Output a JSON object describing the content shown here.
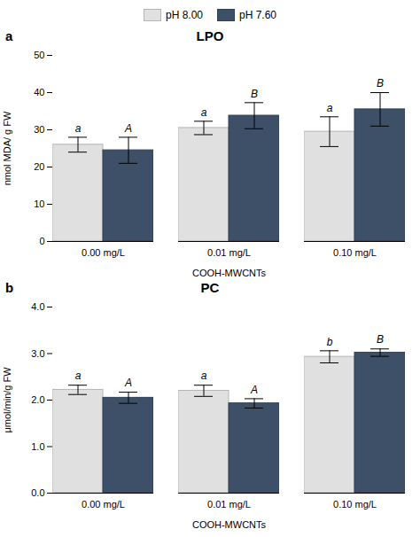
{
  "chart_data": [
    {
      "type": "bar",
      "title": "LPO",
      "panel_label": "a",
      "xlabel": "COOH-MWCNTs",
      "ylabel": "nmol MDA/ g FW",
      "categories": [
        "0.00 mg/L",
        "0.01 mg/L",
        "0.10 mg/L"
      ],
      "ylim": [
        0,
        50
      ],
      "yticks": [
        0,
        10,
        20,
        30,
        40,
        50
      ],
      "grid": false,
      "legend": "top",
      "series": [
        {
          "name": "pH 8.00",
          "color": "#e0e0e0",
          "values": [
            26.0,
            30.5,
            29.5
          ],
          "errors": [
            2.0,
            1.8,
            4.0
          ],
          "letters": [
            "a",
            "a",
            "a"
          ]
        },
        {
          "name": "pH 7.60",
          "color": "#3d5068",
          "values": [
            24.5,
            33.8,
            35.5
          ],
          "errors": [
            3.5,
            3.5,
            4.5
          ],
          "letters": [
            "A",
            "B",
            "B"
          ]
        }
      ]
    },
    {
      "type": "bar",
      "title": "PC",
      "panel_label": "b",
      "xlabel": "COOH-MWCNTs",
      "ylabel": "μmol/min/g FW",
      "categories": [
        "0.00 mg/L",
        "0.01 mg/L",
        "0.10 mg/L"
      ],
      "ylim": [
        0,
        4
      ],
      "yticks": [
        0,
        1,
        2,
        3,
        4
      ],
      "grid": false,
      "series": [
        {
          "name": "pH 8.00",
          "color": "#e0e0e0",
          "values": [
            2.22,
            2.2,
            2.93
          ],
          "errors": [
            0.1,
            0.12,
            0.13
          ],
          "letters": [
            "a",
            "a",
            "b"
          ]
        },
        {
          "name": "pH 7.60",
          "color": "#3d5068",
          "values": [
            2.05,
            1.93,
            3.02
          ],
          "errors": [
            0.12,
            0.1,
            0.08
          ],
          "letters": [
            "A",
            "A",
            "B"
          ]
        }
      ]
    }
  ]
}
